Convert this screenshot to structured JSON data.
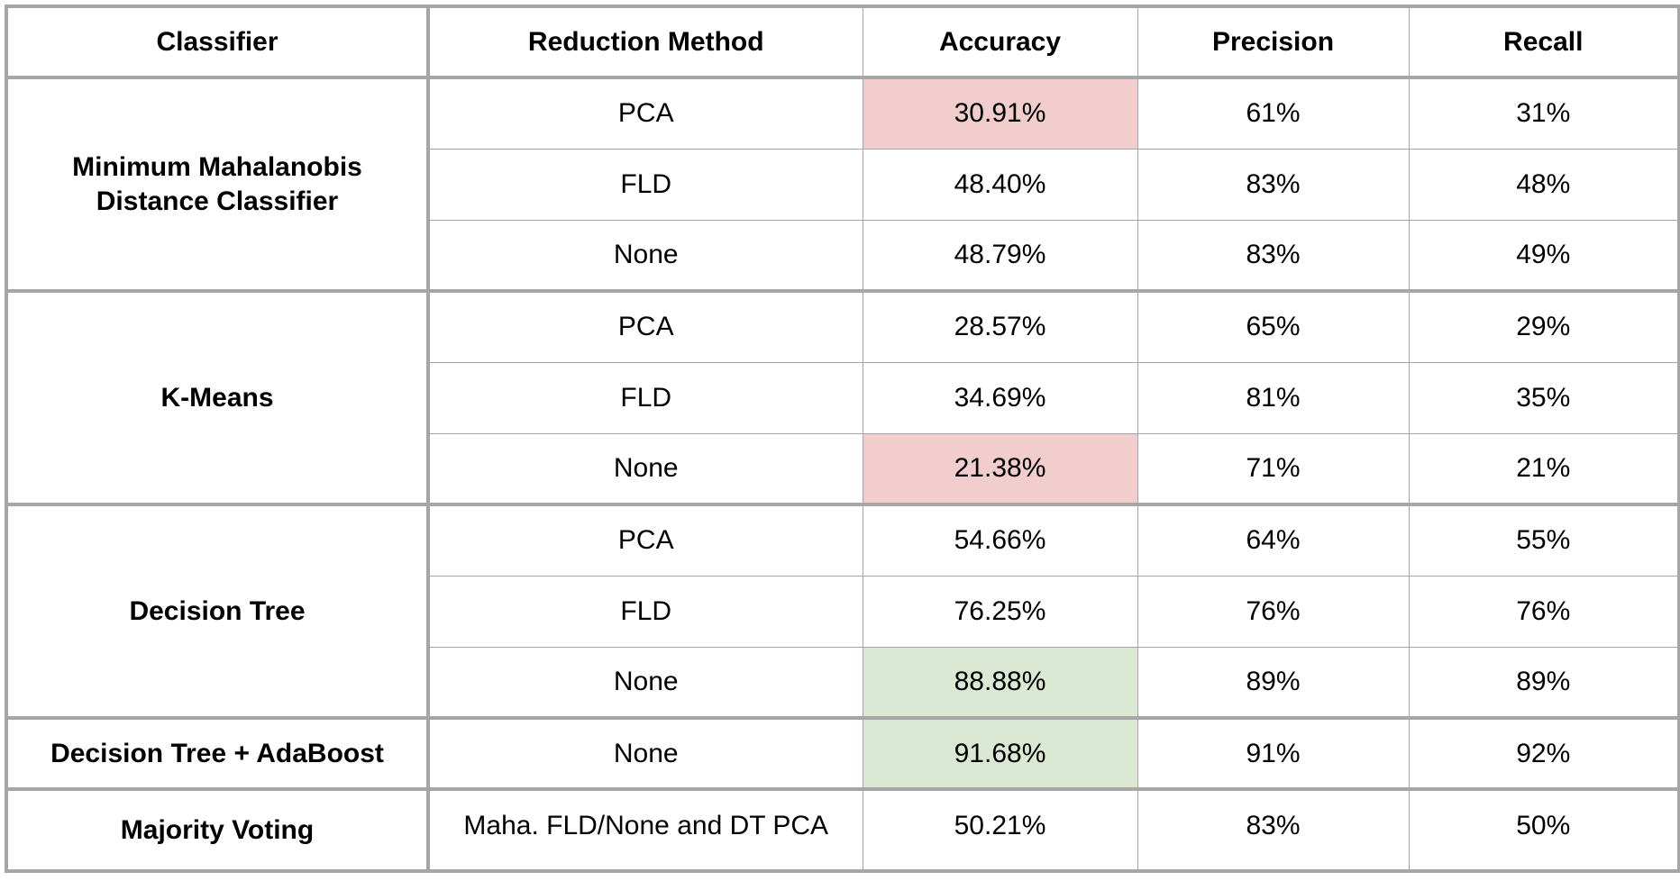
{
  "headers": [
    "Classifier",
    "Reduction Method",
    "Accuracy",
    "Precision",
    "Recall"
  ],
  "groups": [
    {
      "classifier_lines": [
        "Minimum Mahalanobis",
        "Distance Classifier"
      ],
      "rows": [
        {
          "method": "PCA",
          "accuracy": "30.91%",
          "precision": "61%",
          "recall": "31%",
          "highlight": "red"
        },
        {
          "method": "FLD",
          "accuracy": "48.40%",
          "precision": "83%",
          "recall": "48%",
          "highlight": ""
        },
        {
          "method": "None",
          "accuracy": "48.79%",
          "precision": "83%",
          "recall": "49%",
          "highlight": ""
        }
      ]
    },
    {
      "classifier_lines": [
        "K-Means"
      ],
      "rows": [
        {
          "method": "PCA",
          "accuracy": "28.57%",
          "precision": "65%",
          "recall": "29%",
          "highlight": ""
        },
        {
          "method": "FLD",
          "accuracy": "34.69%",
          "precision": "81%",
          "recall": "35%",
          "highlight": ""
        },
        {
          "method": "None",
          "accuracy": "21.38%",
          "precision": "71%",
          "recall": "21%",
          "highlight": "red"
        }
      ]
    },
    {
      "classifier_lines": [
        "Decision Tree"
      ],
      "rows": [
        {
          "method": "PCA",
          "accuracy": "54.66%",
          "precision": "64%",
          "recall": "55%",
          "highlight": ""
        },
        {
          "method": "FLD",
          "accuracy": "76.25%",
          "precision": "76%",
          "recall": "76%",
          "highlight": ""
        },
        {
          "method": "None",
          "accuracy": "88.88%",
          "precision": "89%",
          "recall": "89%",
          "highlight": "green"
        }
      ]
    },
    {
      "classifier_lines": [
        "Decision Tree + AdaBoost"
      ],
      "rows": [
        {
          "method": "None",
          "accuracy": "91.68%",
          "precision": "91%",
          "recall": "92%",
          "highlight": "green"
        }
      ]
    },
    {
      "classifier_lines": [
        "Majority Voting"
      ],
      "rows": [
        {
          "method": "Maha. FLD/None and DT PCA",
          "accuracy": "50.21%",
          "precision": "83%",
          "recall": "50%",
          "highlight": ""
        }
      ]
    }
  ],
  "colors": {
    "highlight_red": "#f2cdcd",
    "highlight_green": "#dbe9d4",
    "border": "#a6a6a6"
  }
}
